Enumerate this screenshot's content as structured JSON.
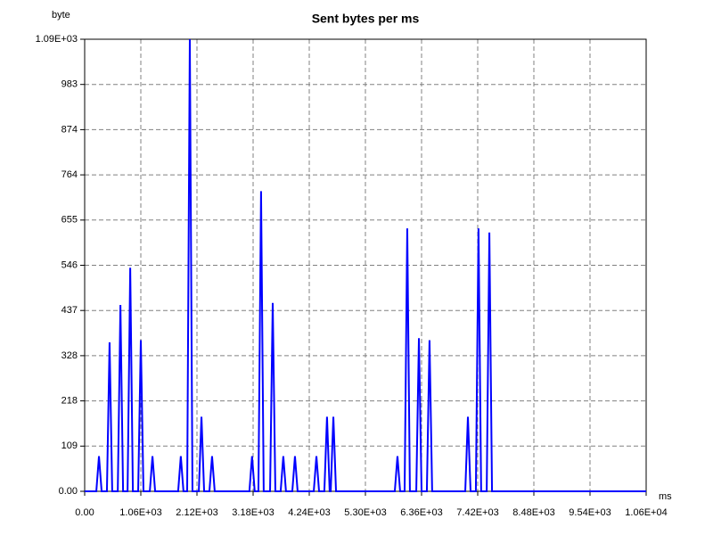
{
  "chart_data": {
    "type": "line",
    "title": "Sent bytes per ms",
    "ylabel": "byte",
    "xlabel": "ms",
    "x": [
      0,
      220,
      270,
      320,
      420,
      470,
      520,
      625,
      675,
      725,
      810,
      860,
      910,
      1010,
      1060,
      1110,
      1230,
      1280,
      1330,
      1765,
      1815,
      1865,
      1935,
      1985,
      2035,
      2155,
      2205,
      2255,
      2355,
      2405,
      2455,
      3110,
      3160,
      3210,
      3280,
      3330,
      3380,
      3500,
      3550,
      3600,
      3700,
      3750,
      3800,
      3920,
      3970,
      4020,
      4325,
      4375,
      4425,
      4525,
      4575,
      4625,
      4645,
      4695,
      4745,
      5855,
      5905,
      5955,
      6040,
      6090,
      6140,
      6260,
      6310,
      6360,
      6460,
      6510,
      6560,
      7185,
      7235,
      7285,
      7385,
      7435,
      7485,
      7590,
      7640,
      7690,
      10600
    ],
    "series": [
      {
        "color": "#0000ff",
        "values": [
          0,
          0,
          85,
          0,
          0,
          360,
          0,
          0,
          450,
          0,
          0,
          540,
          0,
          0,
          365,
          0,
          0,
          85,
          0,
          0,
          85,
          0,
          0,
          1092,
          0,
          0,
          180,
          0,
          0,
          85,
          0,
          0,
          85,
          0,
          0,
          725,
          0,
          0,
          455,
          0,
          0,
          85,
          0,
          0,
          85,
          0,
          0,
          85,
          0,
          0,
          180,
          0,
          0,
          180,
          0,
          0,
          85,
          0,
          0,
          635,
          0,
          0,
          370,
          0,
          0,
          365,
          0,
          0,
          180,
          0,
          0,
          635,
          0,
          0,
          625,
          0,
          0
        ]
      }
    ],
    "xlim": [
      0,
      10600
    ],
    "ylim": [
      0,
      1092
    ],
    "xticks": [
      {
        "value": 0,
        "label": "0.00"
      },
      {
        "value": 1060,
        "label": "1.06E+03"
      },
      {
        "value": 2120,
        "label": "2.12E+03"
      },
      {
        "value": 3180,
        "label": "3.18E+03"
      },
      {
        "value": 4240,
        "label": "4.24E+03"
      },
      {
        "value": 5300,
        "label": "5.30E+03"
      },
      {
        "value": 6360,
        "label": "6.36E+03"
      },
      {
        "value": 7420,
        "label": "7.42E+03"
      },
      {
        "value": 8480,
        "label": "8.48E+03"
      },
      {
        "value": 9540,
        "label": "9.54E+03"
      },
      {
        "value": 10600,
        "label": "1.06E+04"
      }
    ],
    "yticks": [
      {
        "value": 0,
        "label": "0.00"
      },
      {
        "value": 109.2,
        "label": "109"
      },
      {
        "value": 218.4,
        "label": "218"
      },
      {
        "value": 327.6,
        "label": "328"
      },
      {
        "value": 436.8,
        "label": "437"
      },
      {
        "value": 546,
        "label": "546"
      },
      {
        "value": 655.2,
        "label": "655"
      },
      {
        "value": 764.4,
        "label": "764"
      },
      {
        "value": 873.6,
        "label": "874"
      },
      {
        "value": 982.8,
        "label": "983"
      },
      {
        "value": 1092,
        "label": "1.09E+03"
      }
    ],
    "grid": true
  }
}
